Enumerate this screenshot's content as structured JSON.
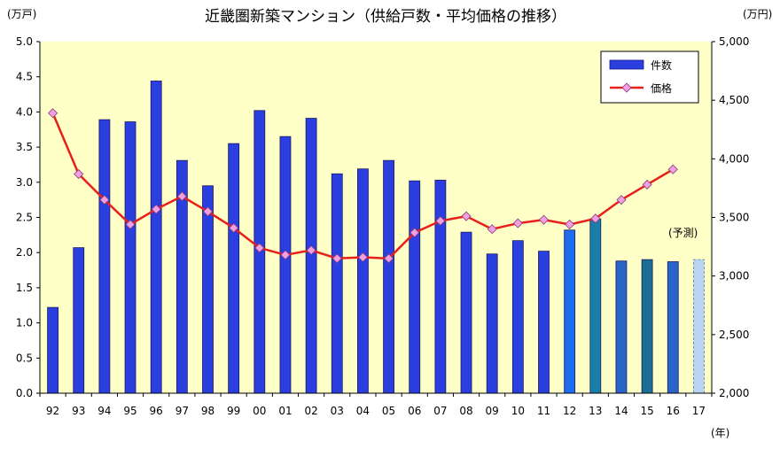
{
  "chart_data": {
    "type": "bar",
    "title": "近畿圏新築マンション（供給戸数・平均価格の推移）",
    "left_axis_unit": "(万戸)",
    "right_axis_unit": "(万円)",
    "x_axis_unit": "(年)",
    "categories": [
      "92",
      "93",
      "94",
      "95",
      "96",
      "97",
      "98",
      "99",
      "00",
      "01",
      "02",
      "03",
      "04",
      "05",
      "06",
      "07",
      "08",
      "09",
      "10",
      "11",
      "12",
      "13",
      "14",
      "15",
      "16",
      "17"
    ],
    "left_yticks": [
      "0.0",
      "0.5",
      "1.0",
      "1.5",
      "2.0",
      "2.5",
      "3.0",
      "3.5",
      "4.0",
      "4.5",
      "5.0"
    ],
    "right_yticks": [
      "2,000",
      "2,500",
      "3,000",
      "3,500",
      "4,000",
      "4,500",
      "5,000"
    ],
    "ylim_left": [
      0,
      5
    ],
    "ylim_right": [
      2000,
      5000
    ],
    "grid": false,
    "legend_position": "top-right",
    "annotation": "(予測)",
    "series": [
      {
        "name": "件数",
        "type": "bar",
        "axis": "left",
        "values": [
          1.22,
          2.07,
          3.89,
          3.86,
          4.44,
          3.31,
          2.95,
          3.55,
          4.02,
          3.65,
          3.91,
          3.12,
          3.19,
          3.31,
          3.02,
          3.03,
          2.29,
          1.98,
          2.17,
          2.02,
          2.32,
          2.48,
          1.88,
          1.9,
          1.87,
          1.9
        ],
        "color": "#2b3fe0",
        "highlight_colors": {
          "12": "#1f6cf0",
          "13": "#1a7fa8",
          "14": "#2a64c8",
          "15": "#1c6e96",
          "16": "#2a64c8",
          "17": "#b8d4f0"
        }
      },
      {
        "name": "価格",
        "type": "line",
        "axis": "right",
        "values": [
          4390,
          3870,
          3650,
          3440,
          3570,
          3680,
          3550,
          3410,
          3240,
          3180,
          3220,
          3150,
          3160,
          3150,
          3370,
          3470,
          3510,
          3400,
          3450,
          3480,
          3440,
          3490,
          3650,
          3780,
          3910,
          null
        ],
        "color": "#e8201c",
        "marker_color": "#f0a0e0"
      }
    ],
    "colors": {
      "plot_bg": "#ffffc8",
      "axis": "#000000"
    }
  }
}
